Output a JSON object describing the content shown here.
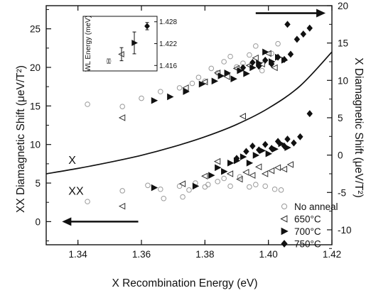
{
  "chart_data": {
    "type": "scatter",
    "title": "",
    "xlabel": "X Recombination Energy (eV)",
    "ylabel_left": "XX Diamagnetic Shift (μeV/T²)",
    "ylabel_right": "X Diamagnetic Shift (μeV/T²)",
    "xlim": [
      1.33,
      1.42
    ],
    "ylim_left": [
      -3,
      28
    ],
    "ylim_right": [
      -12,
      20
    ],
    "x_ticks": [
      1.34,
      1.36,
      1.38,
      1.4,
      1.42
    ],
    "x_tick_labels": [
      "1.34",
      "1.36",
      "1.38",
      "1.40",
      "1.42"
    ],
    "left_ticks": [
      0,
      5,
      10,
      15,
      20,
      25
    ],
    "right_ticks": [
      -10,
      -5,
      0,
      5,
      10,
      15,
      20
    ],
    "grid": false,
    "legend_position": "bottom-right",
    "region_labels": [
      {
        "text": "X",
        "x": 1.337,
        "y": 7.5
      },
      {
        "text": "XX",
        "x": 1.337,
        "y": 3.5
      }
    ],
    "arrows": [
      {
        "direction": "left",
        "axis": "left",
        "x_from": 1.359,
        "x_to": 1.335,
        "y": 0
      },
      {
        "direction": "right",
        "axis": "right",
        "x_from": 1.396,
        "x_to": 1.418,
        "y": 19
      }
    ],
    "curve": {
      "name": "",
      "axis": "left",
      "x": [
        1.33,
        1.34,
        1.35,
        1.36,
        1.37,
        1.38,
        1.39,
        1.4,
        1.41,
        1.42
      ],
      "y": [
        6.2,
        6.9,
        7.7,
        8.6,
        9.7,
        11.0,
        12.6,
        14.7,
        17.6,
        22.0
      ]
    },
    "series": [
      {
        "name": "No anneal",
        "marker": "open-circle",
        "points_left": [
          [
            1.343,
            2.6
          ],
          [
            1.354,
            4.0
          ],
          [
            1.362,
            4.7
          ],
          [
            1.366,
            4.2
          ],
          [
            1.372,
            4.6
          ],
          [
            1.375,
            4.1
          ],
          [
            1.377,
            5.0
          ],
          [
            1.381,
            4.8
          ],
          [
            1.384,
            5.2
          ],
          [
            1.386,
            5.6
          ],
          [
            1.388,
            4.6
          ],
          [
            1.391,
            5.8
          ],
          [
            1.394,
            4.5
          ],
          [
            1.396,
            4.8
          ],
          [
            1.399,
            4.6
          ],
          [
            1.402,
            4.2
          ],
          [
            1.404,
            4.1
          ],
          [
            1.373,
            3.2
          ],
          [
            1.367,
            3.0
          ],
          [
            1.38,
            4.5
          ]
        ],
        "points_right": [
          [
            1.343,
            6.8
          ],
          [
            1.354,
            6.5
          ],
          [
            1.36,
            7.6
          ],
          [
            1.366,
            8.5
          ],
          [
            1.372,
            9.0
          ],
          [
            1.376,
            9.6
          ],
          [
            1.378,
            10.4
          ],
          [
            1.38,
            9.9
          ],
          [
            1.382,
            11.6
          ],
          [
            1.384,
            11.0
          ],
          [
            1.386,
            12.5
          ],
          [
            1.388,
            13.2
          ],
          [
            1.39,
            11.8
          ],
          [
            1.392,
            12.3
          ],
          [
            1.394,
            13.4
          ],
          [
            1.396,
            14.6
          ],
          [
            1.398,
            11.3
          ],
          [
            1.401,
            13.6
          ],
          [
            1.403,
            14.9
          ]
        ]
      },
      {
        "name": "650°C",
        "marker": "open-triangle-left",
        "points_left": [
          [
            1.354,
            2.0
          ],
          [
            1.373,
            4.9
          ],
          [
            1.38,
            5.9
          ],
          [
            1.384,
            7.8
          ],
          [
            1.388,
            6.2
          ],
          [
            1.391,
            5.5
          ],
          [
            1.393,
            6.4
          ],
          [
            1.395,
            6.0
          ],
          [
            1.397,
            7.1
          ],
          [
            1.399,
            6.2
          ],
          [
            1.401,
            6.6
          ],
          [
            1.403,
            7.0
          ],
          [
            1.405,
            6.8
          ],
          [
            1.407,
            7.4
          ]
        ],
        "points_right": [
          [
            1.354,
            5.0
          ],
          [
            1.374,
            9.0
          ],
          [
            1.38,
            9.8
          ],
          [
            1.384,
            11.0
          ],
          [
            1.387,
            10.5
          ],
          [
            1.39,
            11.6
          ],
          [
            1.392,
            5.2
          ],
          [
            1.394,
            12.0
          ],
          [
            1.396,
            13.0
          ],
          [
            1.398,
            12.2
          ],
          [
            1.4,
            13.6
          ],
          [
            1.402,
            11.7
          ]
        ]
      },
      {
        "name": "700°C",
        "marker": "filled-triangle-right",
        "points_left": [
          [
            1.364,
            4.4
          ],
          [
            1.377,
            4.6
          ],
          [
            1.382,
            6.0
          ],
          [
            1.384,
            7.0
          ],
          [
            1.386,
            6.5
          ],
          [
            1.388,
            7.6
          ],
          [
            1.39,
            7.9
          ],
          [
            1.392,
            8.4
          ],
          [
            1.394,
            7.6
          ],
          [
            1.396,
            8.6
          ],
          [
            1.398,
            9.2
          ],
          [
            1.4,
            8.8
          ],
          [
            1.402,
            9.4
          ],
          [
            1.404,
            10.1
          ],
          [
            1.406,
            9.6
          ]
        ],
        "points_right": [
          [
            1.364,
            7.3
          ],
          [
            1.369,
            7.8
          ],
          [
            1.374,
            8.5
          ],
          [
            1.379,
            9.5
          ],
          [
            1.383,
            9.9
          ],
          [
            1.385,
            10.6
          ],
          [
            1.387,
            11.0
          ],
          [
            1.389,
            10.2
          ],
          [
            1.391,
            11.3
          ],
          [
            1.393,
            10.9
          ],
          [
            1.395,
            11.7
          ],
          [
            1.397,
            12.3
          ],
          [
            1.399,
            13.8
          ],
          [
            1.401,
            12.5
          ],
          [
            1.403,
            13.1
          ],
          [
            1.405,
            12.7
          ]
        ]
      },
      {
        "name": "750°C",
        "marker": "filled-diamond",
        "points_left": [
          [
            1.39,
            8.2
          ],
          [
            1.393,
            9.1
          ],
          [
            1.395,
            9.8
          ],
          [
            1.397,
            9.3
          ],
          [
            1.399,
            10.0
          ],
          [
            1.401,
            9.5
          ],
          [
            1.403,
            10.4
          ],
          [
            1.405,
            9.8
          ],
          [
            1.406,
            10.7
          ],
          [
            1.408,
            10.2
          ],
          [
            1.41,
            11.0
          ],
          [
            1.413,
            14.0
          ]
        ],
        "points_right": [
          [
            1.392,
            11.7
          ],
          [
            1.395,
            12.4
          ],
          [
            1.397,
            11.9
          ],
          [
            1.399,
            12.7
          ],
          [
            1.401,
            12.2
          ],
          [
            1.403,
            13.1
          ],
          [
            1.405,
            12.8
          ],
          [
            1.407,
            13.5
          ],
          [
            1.406,
            17.5
          ],
          [
            1.409,
            15.5
          ],
          [
            1.411,
            16.2
          ],
          [
            1.413,
            17.0
          ]
        ]
      }
    ],
    "inset": {
      "type": "scatter",
      "ylabel": "WL Energy (meV)",
      "ylim": [
        1.4145,
        1.4295
      ],
      "y_ticks": [
        1.416,
        1.422,
        1.428
      ],
      "y_tick_labels": [
        "1.416",
        "1.422",
        "1.428"
      ],
      "points": [
        {
          "series": "No anneal",
          "marker": "open-circle",
          "y": 1.4172,
          "err": 0.0006
        },
        {
          "series": "650°C",
          "marker": "open-triangle-left",
          "y": 1.4191,
          "err": 0.0018
        },
        {
          "series": "700°C",
          "marker": "filled-triangle-right",
          "y": 1.4222,
          "err": 0.003
        },
        {
          "series": "750°C",
          "marker": "filled-diamond",
          "y": 1.4268,
          "err": 0.001
        }
      ]
    }
  }
}
